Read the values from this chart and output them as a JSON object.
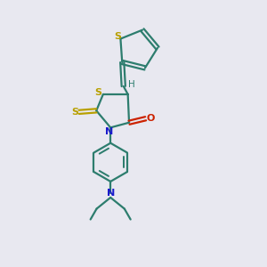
{
  "bg_color": "#e8e8f0",
  "bond_color": "#2d7d6e",
  "sulfur_color": "#b8a000",
  "nitrogen_color": "#1a1acc",
  "oxygen_color": "#cc2200",
  "h_color": "#2d7d6e",
  "figsize": [
    3.0,
    3.0
  ],
  "dpi": 100,
  "xlim": [
    0,
    10
  ],
  "ylim": [
    0,
    10
  ]
}
